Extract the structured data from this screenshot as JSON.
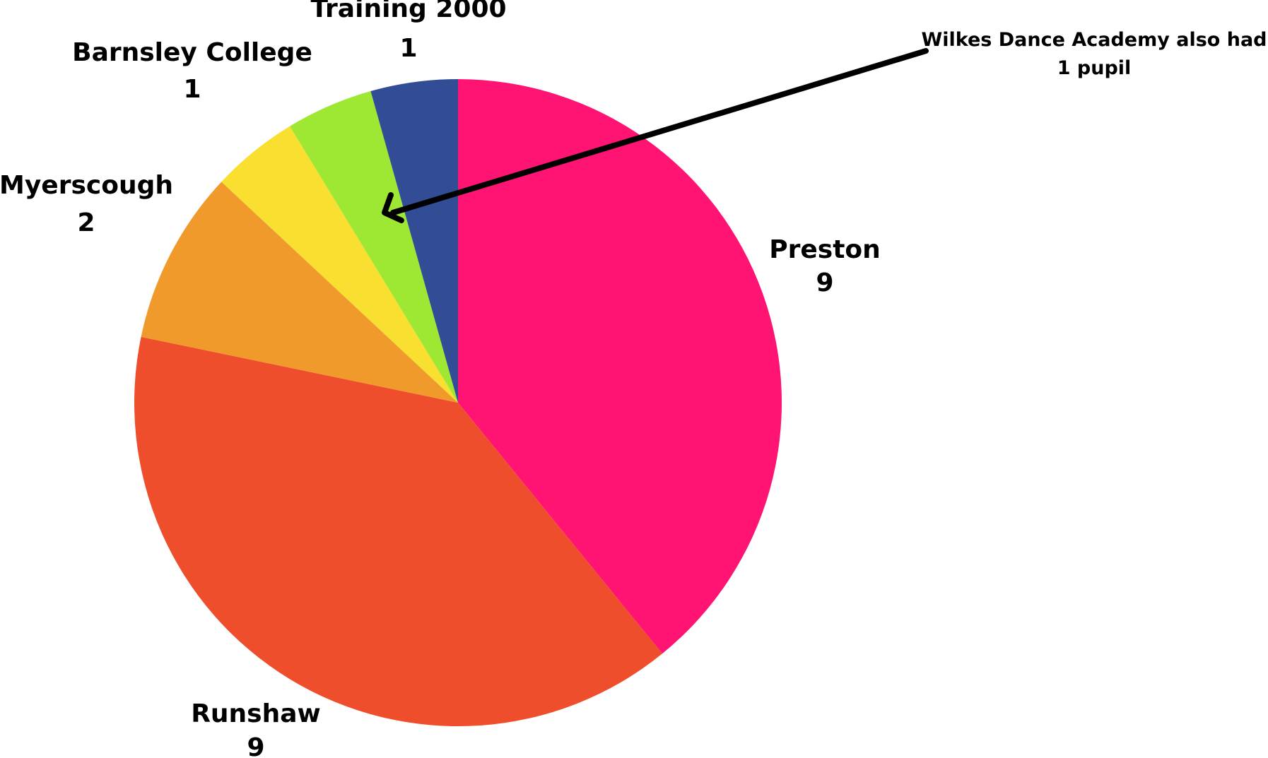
{
  "chart_data": {
    "type": "pie",
    "title": "",
    "slices": [
      {
        "label": "Preston",
        "value": 9,
        "value_label": "9",
        "color": "#FF1473"
      },
      {
        "label": "Runshaw",
        "value": 9,
        "value_label": "9",
        "color": "#EF4E2C"
      },
      {
        "label": "Myerscough",
        "value": 2,
        "value_label": "2",
        "color": "#EF9A2A"
      },
      {
        "label": "Barnsley College",
        "value": 1,
        "value_label": "1",
        "color": "#F8DF30"
      },
      {
        "label": "Wilkes Dance Academy",
        "value": 1,
        "value_label": "",
        "color": "#9EE833"
      },
      {
        "label": "Training 2000",
        "value": 1,
        "value_label": "1",
        "color": "#324C96"
      }
    ],
    "start_direction": "12 o'clock",
    "direction": "clockwise",
    "legend": "none",
    "annotation": {
      "line1": "Wilkes Dance Academy also had",
      "line2": "1 pupil",
      "points_to": "Wilkes Dance Academy"
    }
  }
}
